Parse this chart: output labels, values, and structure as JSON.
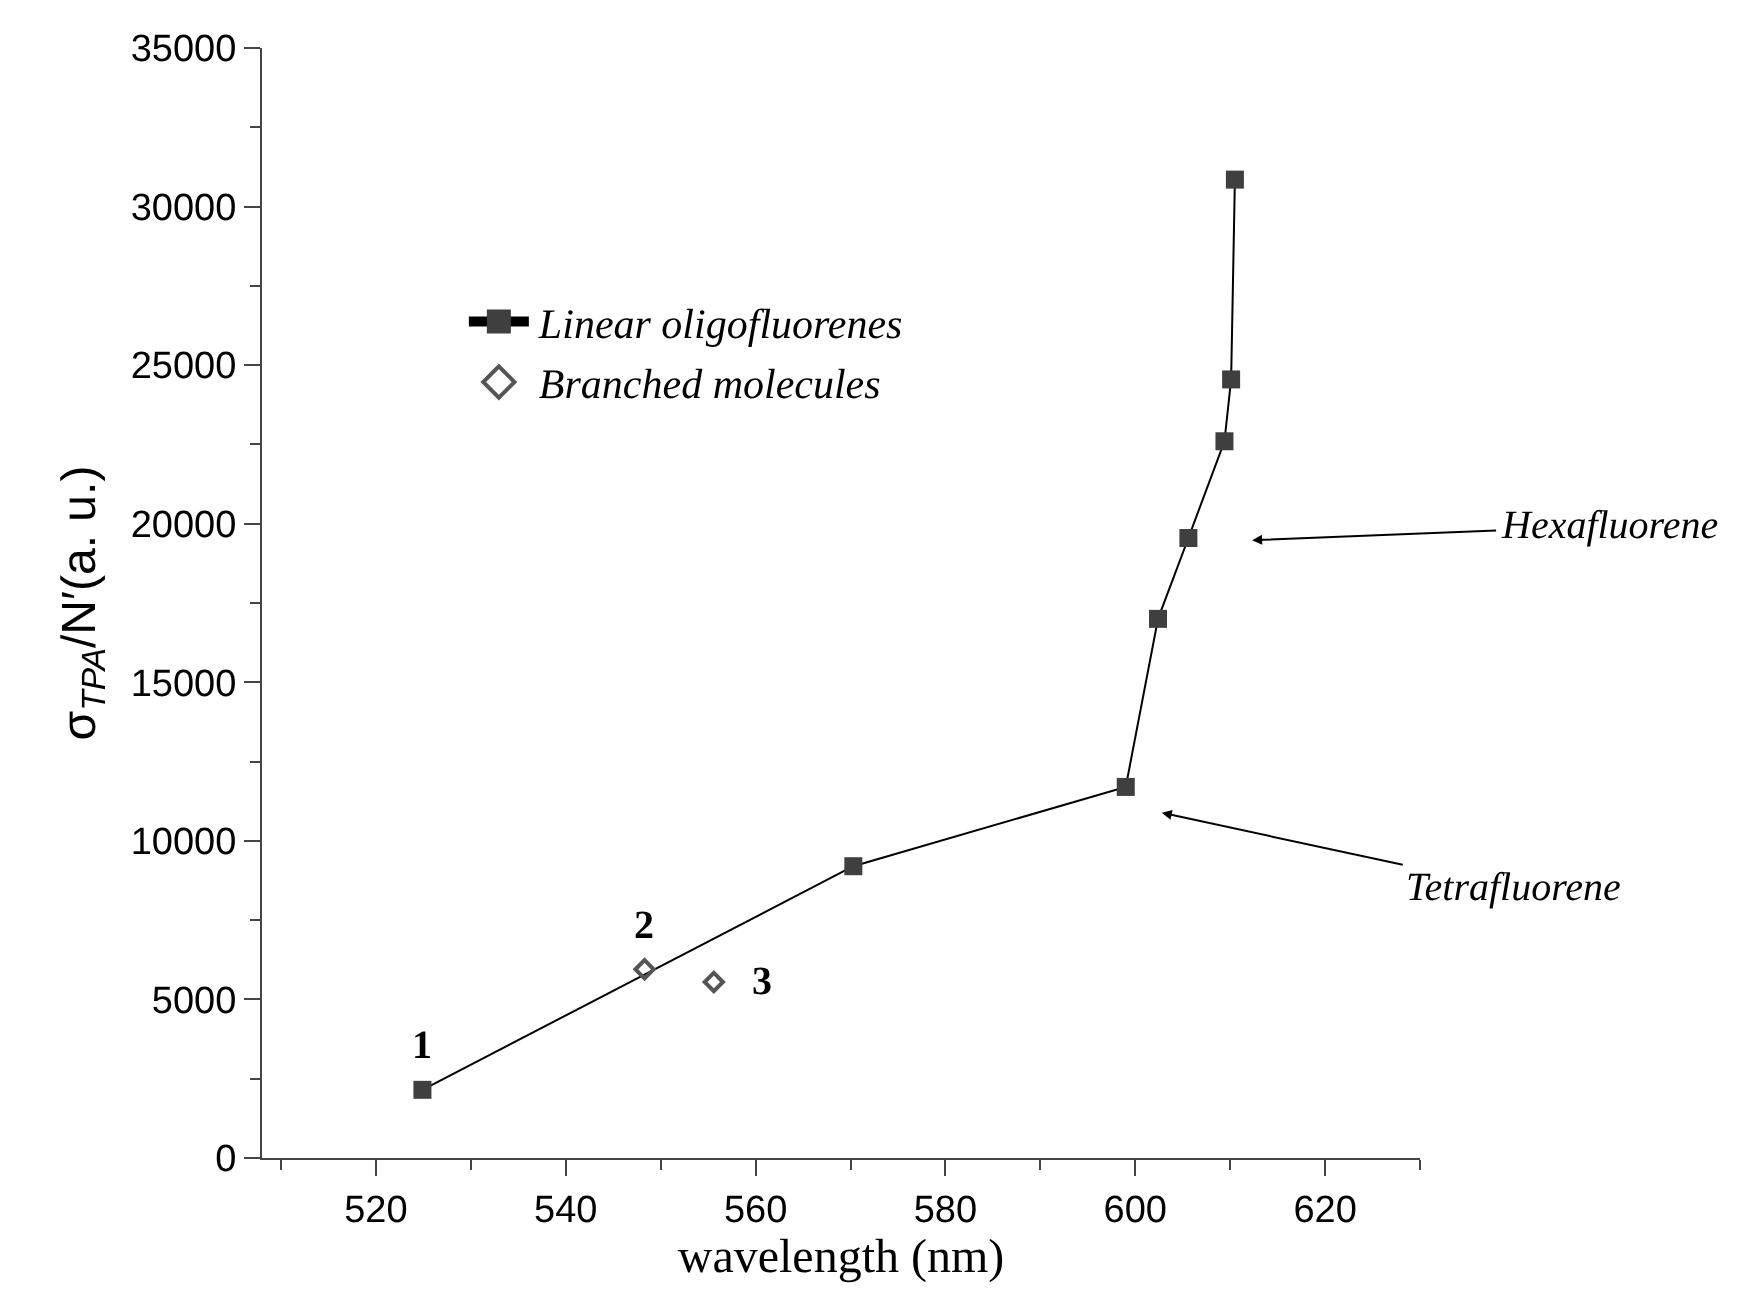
{
  "chart_data": {
    "type": "line",
    "xlabel": "wavelength (nm)",
    "ylabel": "σ$_{TPA}$/N′(a. u.)",
    "xlim": [
      508,
      630
    ],
    "xticks": [
      520,
      540,
      560,
      580,
      600,
      620
    ],
    "ylim": [
      0,
      35000
    ],
    "yticks": [
      0,
      5000,
      10000,
      15000,
      20000,
      25000,
      30000,
      35000
    ],
    "legend": "top left",
    "series": [
      {
        "name": "Linear oligofluorenes",
        "marker": "square",
        "color": "#3f3f3f",
        "x": [
          524.9,
          570.3,
          599.0,
          602.4,
          605.6,
          609.4,
          610.1,
          610.5
        ],
        "values": [
          2150,
          9200,
          11700,
          17000,
          19550,
          22600,
          24550,
          30850
        ]
      },
      {
        "name": "Branched molecules",
        "type": "scatter",
        "marker": "diamond",
        "color": "#555555",
        "x": [
          548.3,
          555.6
        ],
        "values": [
          5950,
          5550
        ]
      }
    ],
    "annotations": [
      {
        "text": "1",
        "x": 524.9,
        "y": 2150
      },
      {
        "text": "2",
        "x": 548.3,
        "y": 5950
      },
      {
        "text": "3",
        "x": 555.6,
        "y": 5550
      },
      "Hexafluorene",
      "Tetrafluorene"
    ]
  }
}
